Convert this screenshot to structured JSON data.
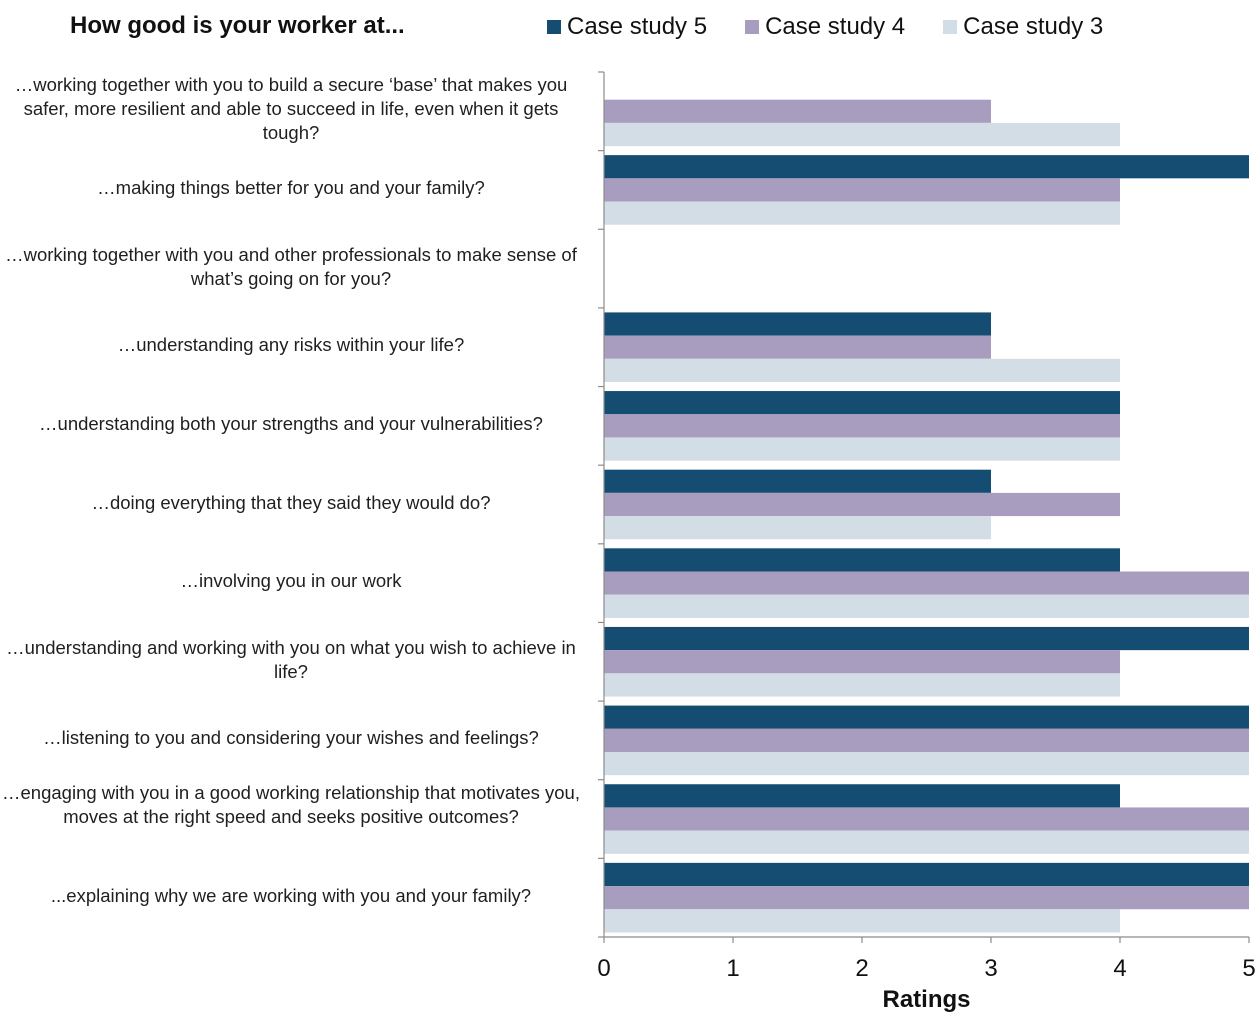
{
  "chart_data": {
    "type": "bar",
    "orientation": "horizontal",
    "title": "How good is your worker at...",
    "xlabel": "Ratings",
    "xlim": [
      0,
      5
    ],
    "xticks": [
      "0",
      "1",
      "2",
      "3",
      "4",
      "5"
    ],
    "legend_position": "top",
    "categories": [
      "…working together with you to build a secure ‘base’ that makes you safer, more resilient and able to succeed in life, even when it gets tough?",
      "…making things better for you and your family?",
      "…working together with you and other professionals to make sense of what’s going on for you?",
      "…understanding any risks within your life?",
      "…understanding both your strengths and your vulnerabilities?",
      "…doing everything that they said they would do?",
      "…involving you in our work",
      "…understanding and working with you on what you wish to achieve in life?",
      "…listening to you and considering your wishes and feelings?",
      "…engaging with you in a good working relationship that motivates you, moves at the right speed and seeks positive outcomes?",
      "...explaining why we are working with you and your family?"
    ],
    "series": [
      {
        "name": "Case study 5",
        "color": "#154d72",
        "values": [
          null,
          5,
          null,
          3,
          4,
          3,
          4,
          5,
          5,
          4,
          5
        ]
      },
      {
        "name": "Case study 4",
        "color": "#a89cbf",
        "values": [
          3,
          4,
          null,
          3,
          4,
          4,
          5,
          4,
          5,
          5,
          5
        ]
      },
      {
        "name": "Case study 3",
        "color": "#d2dde5",
        "values": [
          4,
          4,
          null,
          4,
          4,
          3,
          5,
          4,
          5,
          5,
          4
        ]
      }
    ],
    "grid": false
  }
}
